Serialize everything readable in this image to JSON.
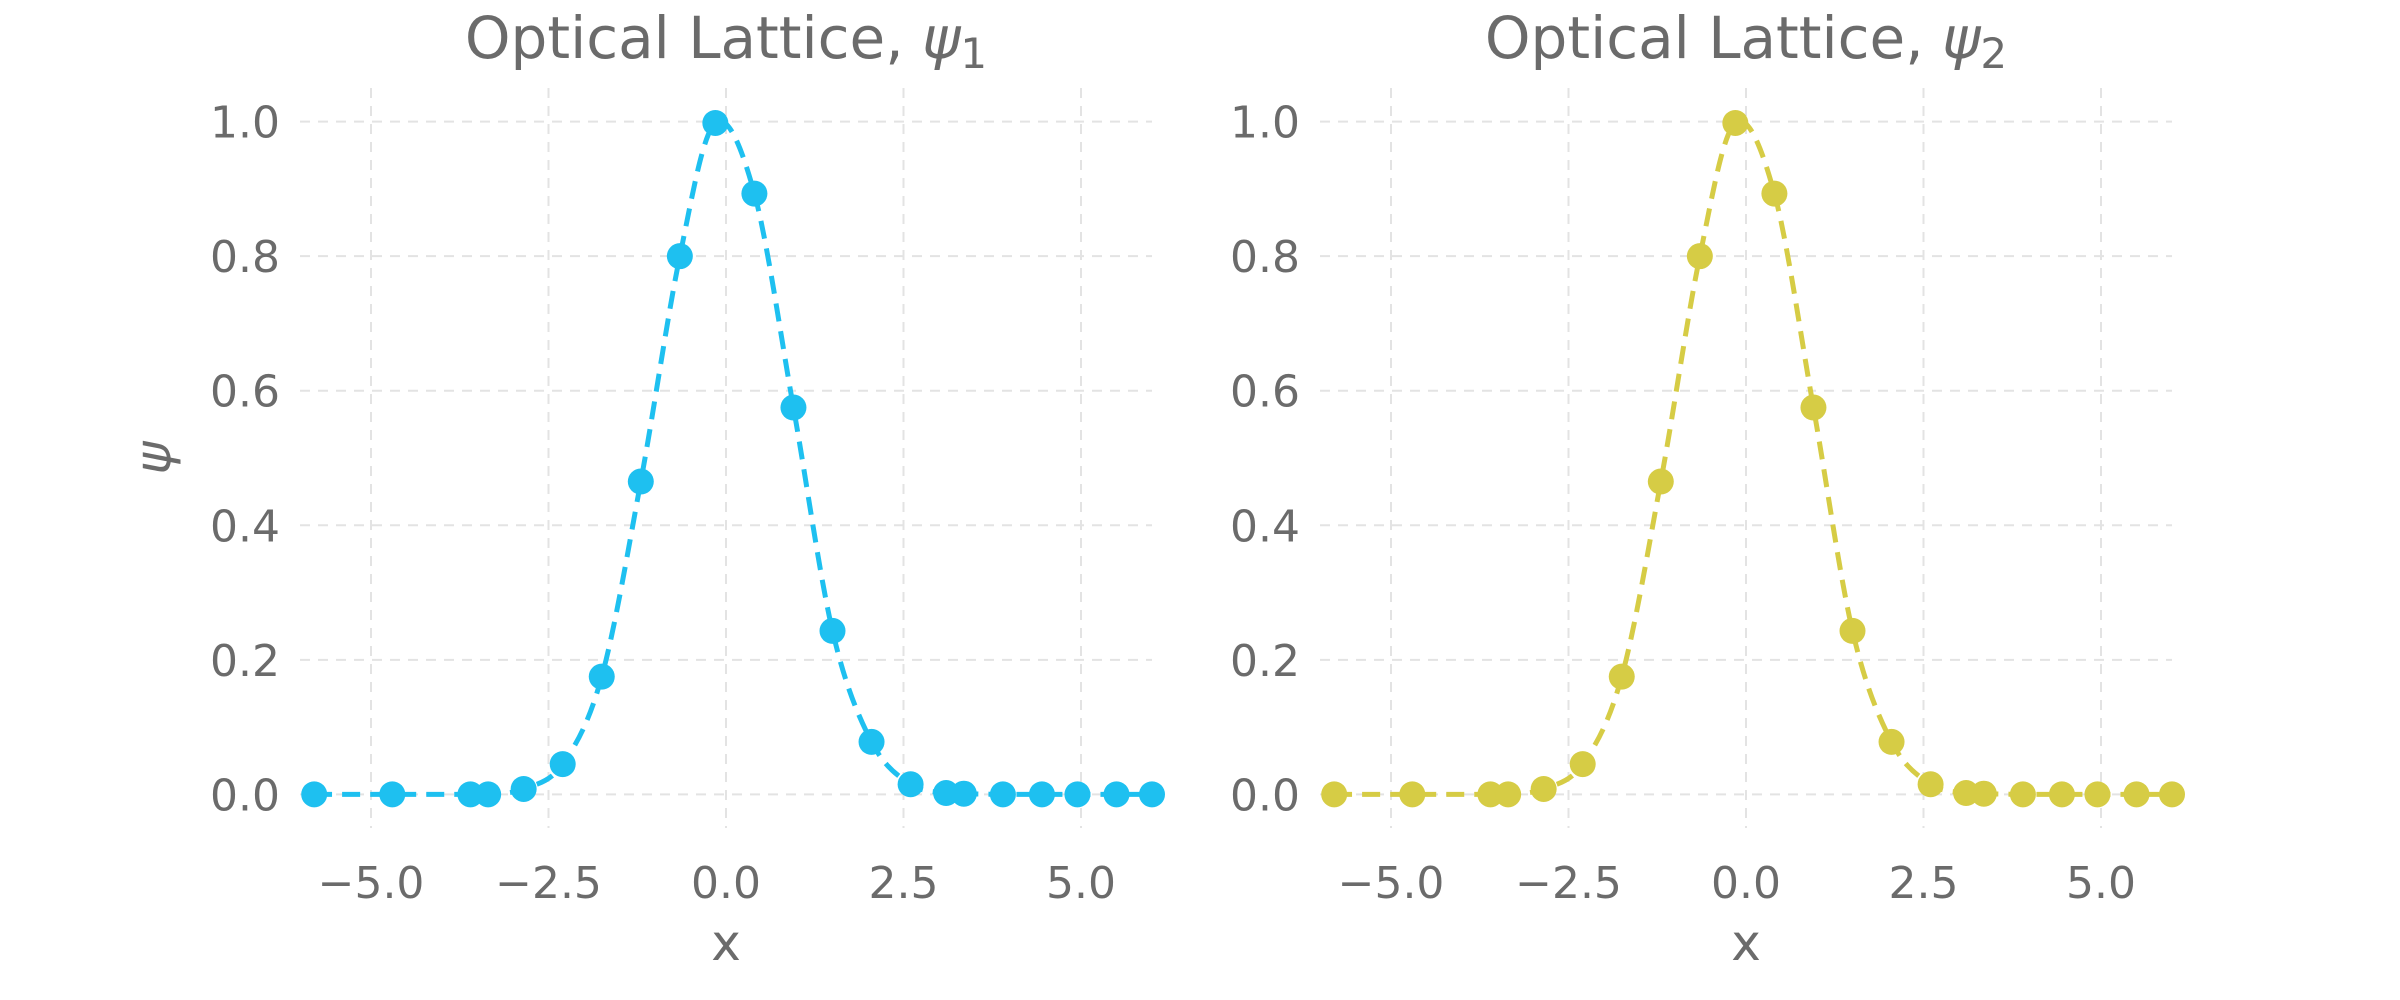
{
  "chart_data": [
    {
      "type": "line",
      "title": "Optical Lattice, ψ1",
      "title_text": "Optical Lattice, ",
      "title_symbol": "ψ",
      "title_subscript": "1",
      "xlabel": "x",
      "ylabel": "ψ",
      "xlim": [
        -6,
        6
      ],
      "ylim": [
        -0.05,
        1.05
      ],
      "xticks": [
        -5.0,
        -2.5,
        0.0,
        2.5,
        5.0
      ],
      "xtick_labels": [
        "−5.0",
        "−2.5",
        "0.0",
        "2.5",
        "5.0"
      ],
      "yticks": [
        0.0,
        0.2,
        0.4,
        0.6,
        0.8,
        1.0
      ],
      "ytick_labels": [
        "0.0",
        "0.2",
        "0.4",
        "0.6",
        "0.8",
        "1.0"
      ],
      "grid": true,
      "legend": "none",
      "series": [
        {
          "color": "#1ec0f0",
          "line_style": "dashed",
          "marker": "circle",
          "x": [
            -5.8,
            -4.7,
            -3.6,
            -3.35,
            -2.85,
            -2.3,
            -1.75,
            -1.2,
            -0.65,
            -0.15,
            0.4,
            0.95,
            1.5,
            2.05,
            2.6,
            3.1,
            3.35,
            3.9,
            4.45,
            4.95,
            5.5,
            6.0
          ],
          "y": [
            0.0,
            0.0,
            0.0,
            0.0,
            0.008,
            0.045,
            0.175,
            0.465,
            0.8,
            0.998,
            0.893,
            0.575,
            0.243,
            0.078,
            0.015,
            0.002,
            0.001,
            0.0,
            0.0,
            0.0,
            0.0,
            0.0
          ]
        }
      ]
    },
    {
      "type": "line",
      "title": "Optical Lattice, ψ2",
      "title_text": "Optical Lattice, ",
      "title_symbol": "ψ",
      "title_subscript": "2",
      "xlabel": "x",
      "ylabel": "",
      "xlim": [
        -6,
        6
      ],
      "ylim": [
        -0.05,
        1.05
      ],
      "xticks": [
        -5.0,
        -2.5,
        0.0,
        2.5,
        5.0
      ],
      "xtick_labels": [
        "−5.0",
        "−2.5",
        "0.0",
        "2.5",
        "5.0"
      ],
      "yticks": [
        0.0,
        0.2,
        0.4,
        0.6,
        0.8,
        1.0
      ],
      "ytick_labels": [
        "0.0",
        "0.2",
        "0.4",
        "0.6",
        "0.8",
        "1.0"
      ],
      "grid": true,
      "legend": "none",
      "series": [
        {
          "color": "#d6cc45",
          "line_style": "dashed",
          "marker": "circle",
          "x": [
            -5.8,
            -4.7,
            -3.6,
            -3.35,
            -2.85,
            -2.3,
            -1.75,
            -1.2,
            -0.65,
            -0.15,
            0.4,
            0.95,
            1.5,
            2.05,
            2.6,
            3.1,
            3.35,
            3.9,
            4.45,
            4.95,
            5.5,
            6.0
          ],
          "y": [
            0.0,
            0.0,
            0.0,
            0.0,
            0.008,
            0.045,
            0.175,
            0.465,
            0.8,
            0.998,
            0.893,
            0.575,
            0.243,
            0.078,
            0.015,
            0.002,
            0.001,
            0.0,
            0.0,
            0.0,
            0.0,
            0.0
          ]
        }
      ]
    }
  ]
}
